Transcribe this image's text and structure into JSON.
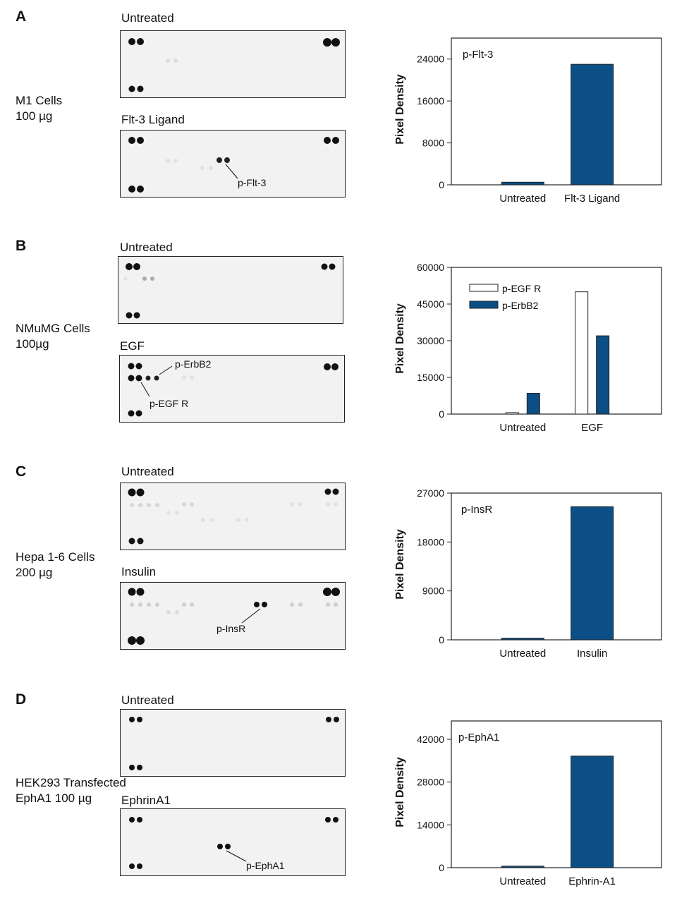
{
  "colors": {
    "bar": "#0b4f86",
    "outline": "#222222",
    "blot_bg": "#f2f2f2"
  },
  "panels": [
    {
      "letter": "A",
      "cells": [
        "M1 Cells",
        "100 µg"
      ],
      "blots": [
        {
          "title": "Untreated",
          "annotation": ""
        },
        {
          "title": "Flt-3 Ligand",
          "annotation": "p-Flt-3"
        }
      ],
      "chart_data": {
        "type": "bar",
        "title": "p-Flt-3",
        "ylabel": "Pixel Density",
        "categories": [
          "Untreated",
          "Flt-3 Ligand"
        ],
        "series": [
          {
            "values": [
              500,
              23000
            ]
          }
        ],
        "ylim": [
          0,
          28000
        ],
        "yticks": [
          0,
          8000,
          16000,
          24000
        ]
      }
    },
    {
      "letter": "B",
      "cells": [
        "NMuMG Cells",
        "100µg"
      ],
      "blots": [
        {
          "title": "Untreated",
          "annotation": ""
        },
        {
          "title": "EGF",
          "annotation": "p-ErbB2",
          "annotation2": "p-EGF R"
        }
      ],
      "chart_data": {
        "type": "bar",
        "title": "",
        "ylabel": "Pixel Density",
        "categories": [
          "Untreated",
          "EGF"
        ],
        "series": [
          {
            "name": "p-EGF R",
            "values": [
              600,
              50000
            ]
          },
          {
            "name": "p-ErbB2",
            "values": [
              8500,
              32000
            ]
          }
        ],
        "ylim": [
          0,
          60000
        ],
        "yticks": [
          0,
          15000,
          30000,
          45000,
          60000
        ],
        "legend": "top-left"
      }
    },
    {
      "letter": "C",
      "cells": [
        "Hepa 1-6 Cells",
        "200 µg"
      ],
      "blots": [
        {
          "title": "Untreated",
          "annotation": ""
        },
        {
          "title": "Insulin",
          "annotation": "p-InsR"
        }
      ],
      "chart_data": {
        "type": "bar",
        "title": "p-InsR",
        "ylabel": "Pixel Density",
        "categories": [
          "Untreated",
          "Insulin"
        ],
        "series": [
          {
            "values": [
              300,
              24500
            ]
          }
        ],
        "ylim": [
          0,
          27000
        ],
        "yticks": [
          0,
          9000,
          18000,
          27000
        ]
      }
    },
    {
      "letter": "D",
      "cells": [
        "HEK293 Transfected",
        "EphA1 100 µg"
      ],
      "blots": [
        {
          "title": "Untreated",
          "annotation": ""
        },
        {
          "title": "EphrinA1",
          "annotation": "p-EphA1"
        }
      ],
      "chart_data": {
        "type": "bar",
        "title": "p-EphA1",
        "ylabel": "Pixel Density",
        "categories": [
          "Untreated",
          "Ephrin-A1"
        ],
        "series": [
          {
            "values": [
              500,
              36500
            ]
          }
        ],
        "ylim": [
          0,
          48000
        ],
        "yticks": [
          0,
          14000,
          28000,
          42000
        ]
      }
    }
  ]
}
